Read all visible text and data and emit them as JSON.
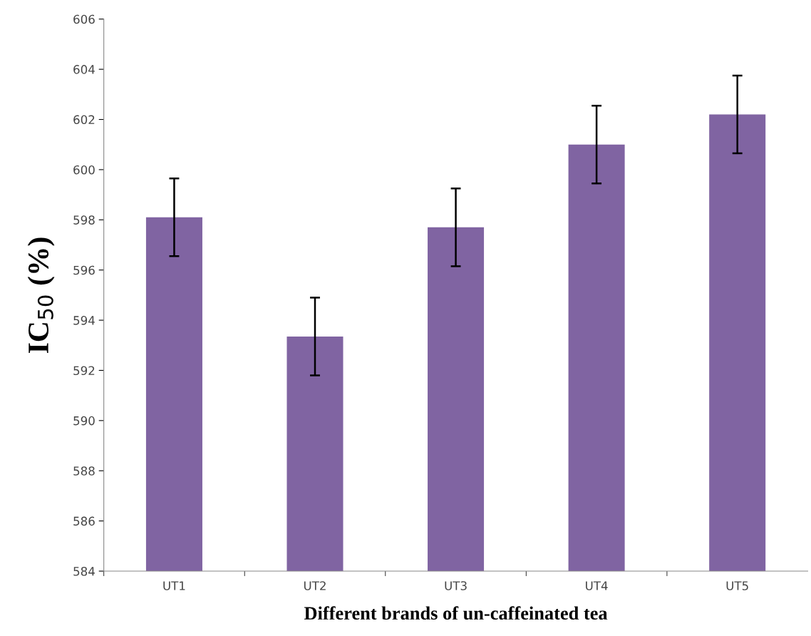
{
  "chart_data": {
    "type": "bar",
    "xlabel": "Different brands of un-caffeinated tea",
    "ylabel": "IC$_{50}$ (%)",
    "categories": [
      "UT1",
      "UT2",
      "UT3",
      "UT4",
      "UT5"
    ],
    "values": [
      598.1,
      593.35,
      597.7,
      601.0,
      602.2
    ],
    "errors": [
      1.55,
      1.55,
      1.55,
      1.55,
      1.55
    ],
    "color": "#8064a2",
    "ylim": [
      584,
      606
    ],
    "yticks": [
      584,
      586,
      588,
      590,
      592,
      594,
      596,
      598,
      600,
      602,
      604,
      606
    ],
    "grid": false,
    "legend": false
  }
}
